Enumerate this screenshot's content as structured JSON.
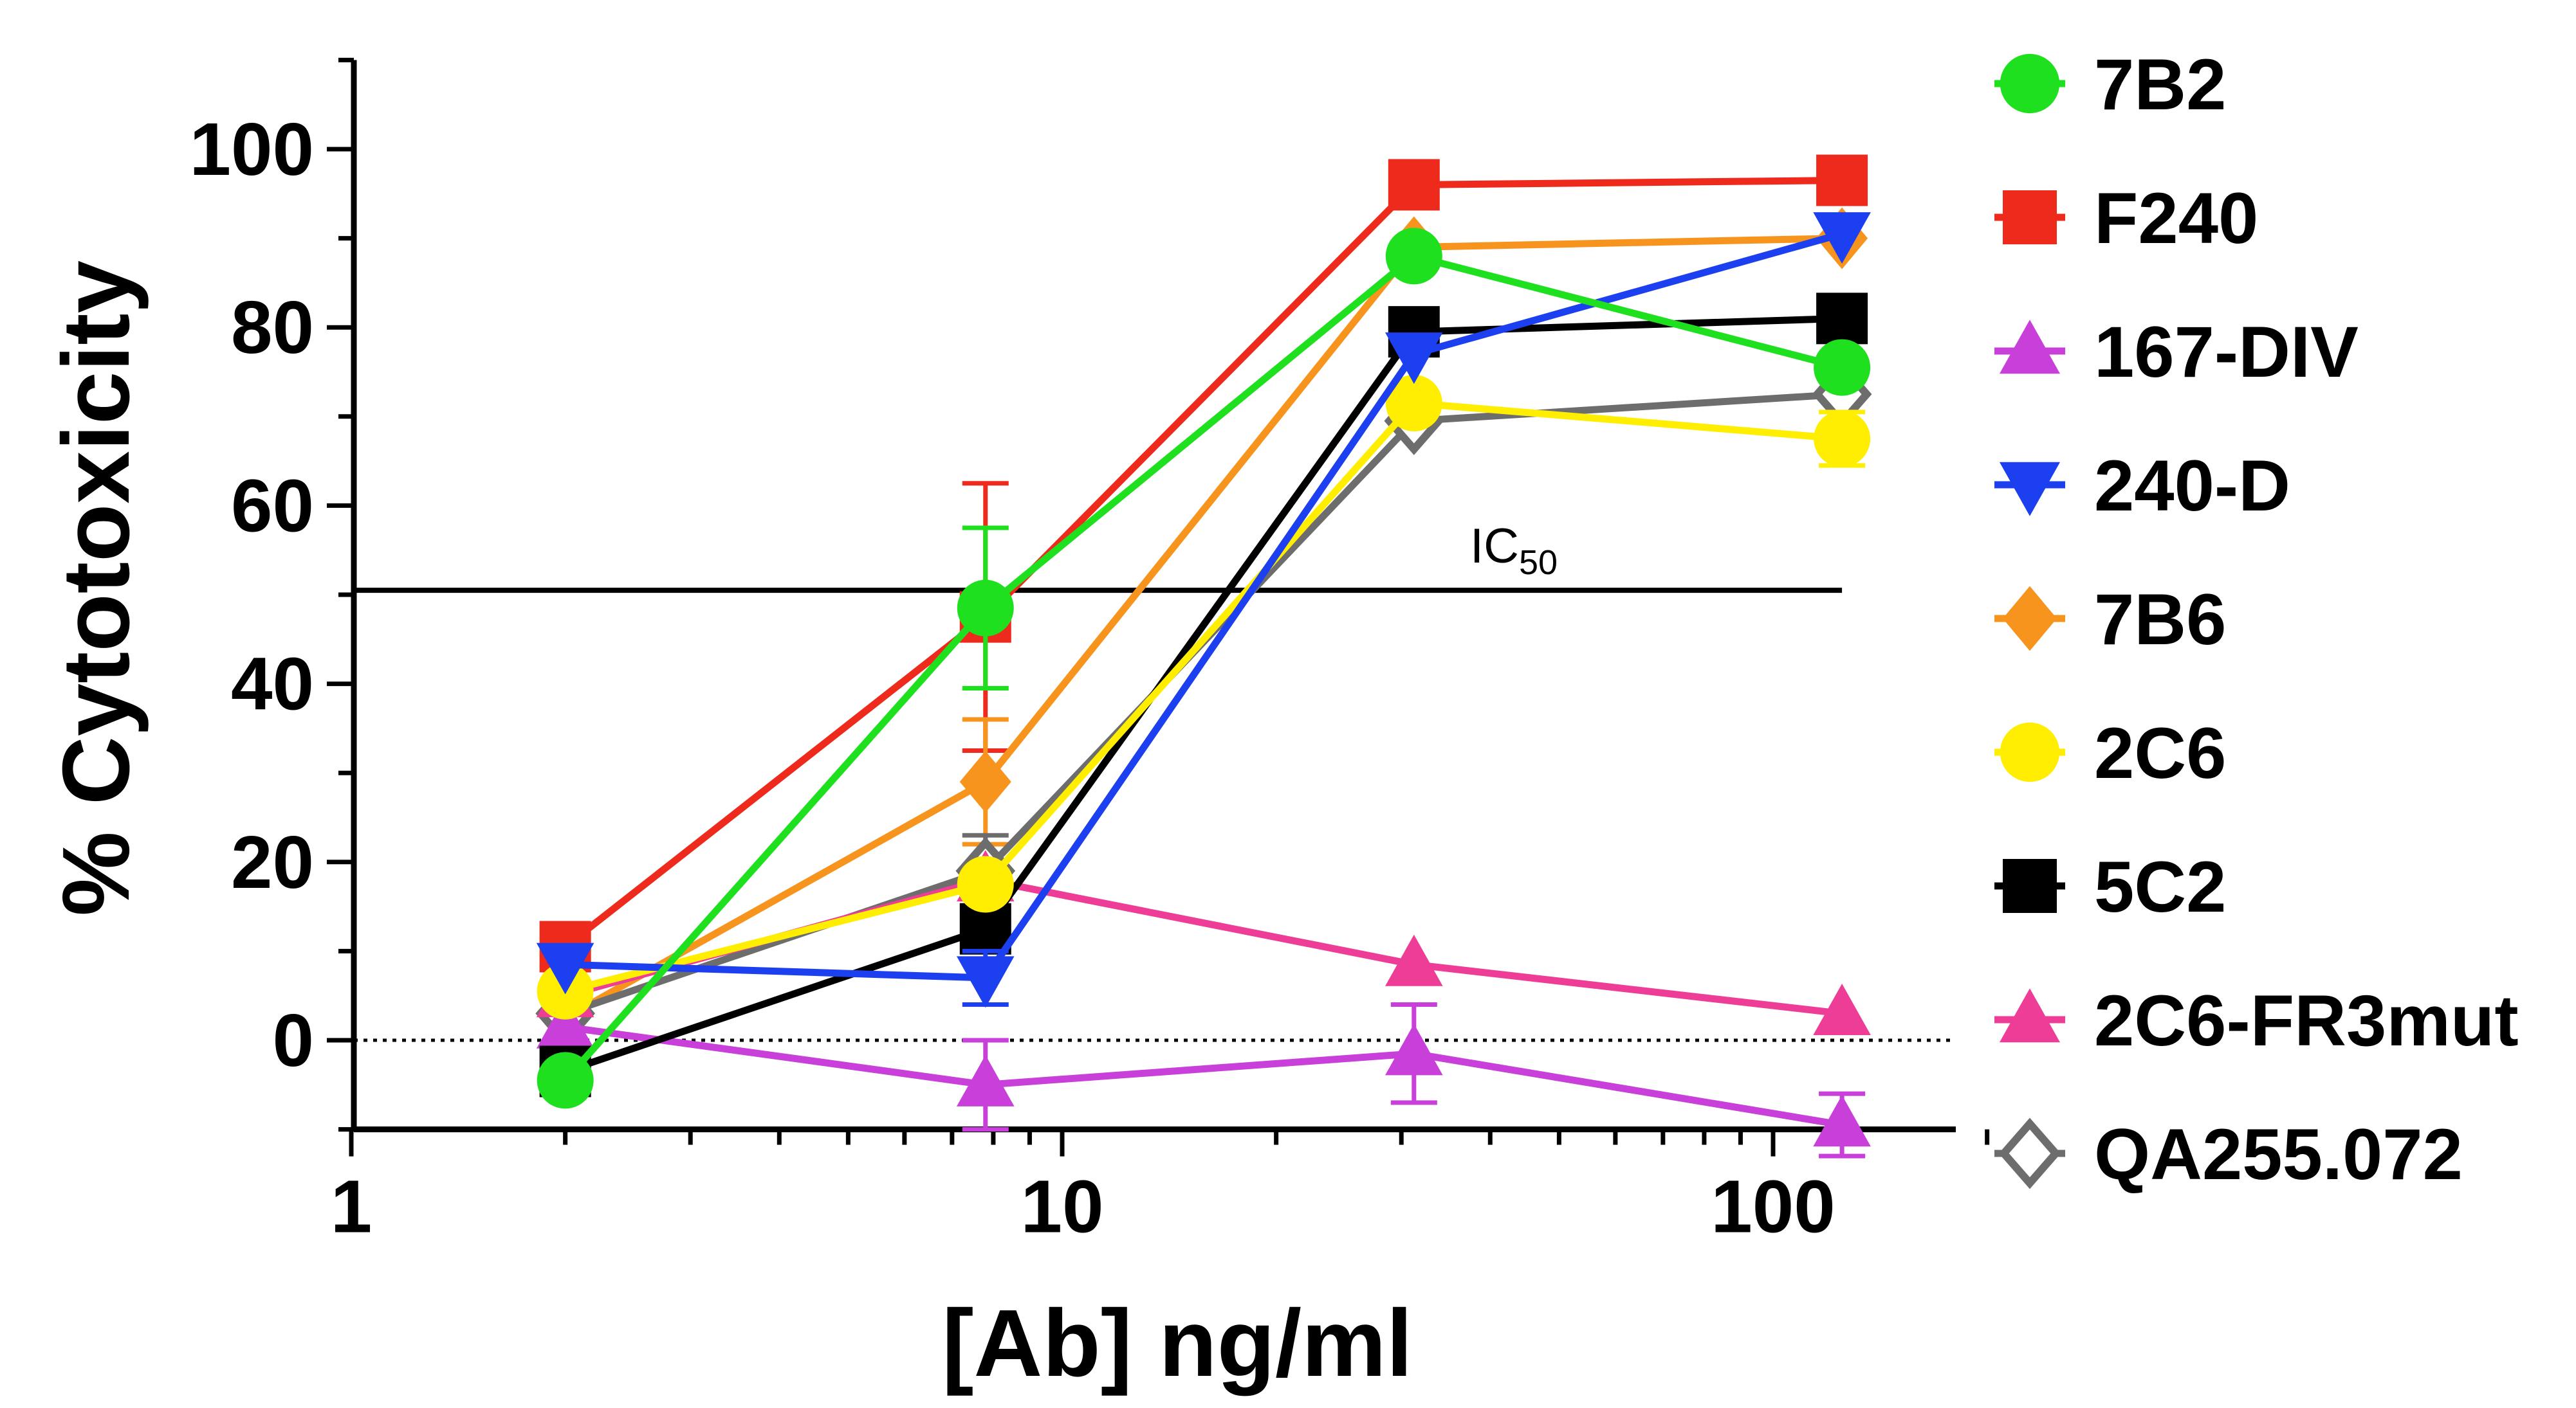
{
  "chart_data": {
    "type": "line",
    "title": "",
    "xlabel": "[Ab] ng/ml",
    "ylabel": "% Cytotoxicity",
    "xscale": "log",
    "xlim": [
      1,
      200
    ],
    "ylim": [
      -10,
      110
    ],
    "x_ticks": [
      1,
      10,
      100
    ],
    "x_tick_labels": [
      "1",
      "10",
      "100"
    ],
    "y_ticks": [
      0,
      20,
      40,
      60,
      80,
      100
    ],
    "y_tick_labels": [
      "0",
      "20",
      "40",
      "60",
      "80",
      "100"
    ],
    "x": [
      2,
      7.8,
      31.25,
      125
    ],
    "reference_line": {
      "y": 50.5,
      "x_range": [
        1,
        125
      ],
      "label": "IC",
      "label_sub": "50"
    },
    "zero_line": {
      "y": 0,
      "style": "dotted"
    },
    "legend_position": "right",
    "series": [
      {
        "name": "F240",
        "color": "#ee2a1c",
        "marker": "square",
        "values": [
          10.5,
          47.5,
          96,
          96.5
        ],
        "errors": [
          0,
          15,
          0,
          0
        ]
      },
      {
        "name": "7B6",
        "color": "#f7941d",
        "marker": "diamond",
        "values": [
          2.5,
          29,
          89,
          90
        ],
        "errors": [
          0,
          7,
          0,
          0
        ]
      },
      {
        "name": "QA255.072",
        "color": "#6d6d6d",
        "marker": "open-diamond",
        "values": [
          3,
          19,
          69.5,
          72.5
        ],
        "errors": [
          0,
          4,
          0,
          0
        ]
      },
      {
        "name": "2C6-FR3mut",
        "color": "#ee3d96",
        "marker": "triangle-up",
        "values": [
          5,
          18,
          8.5,
          3
        ],
        "errors": [
          0,
          0,
          0,
          0
        ]
      },
      {
        "name": "167-DIV",
        "color": "#c83fd9",
        "marker": "triangle-up",
        "values": [
          1.5,
          -5,
          -1.5,
          -9.5
        ],
        "errors": [
          0,
          5,
          5.5,
          3.5
        ]
      },
      {
        "name": "5C2",
        "color": "#000000",
        "marker": "square",
        "values": [
          -3.5,
          12.5,
          79.5,
          81
        ],
        "errors": [
          0,
          0,
          0,
          0
        ]
      },
      {
        "name": "2C6",
        "color": "#ffee00",
        "marker": "circle",
        "values": [
          5.5,
          17.5,
          71.5,
          67.5
        ],
        "errors": [
          0,
          0,
          0,
          3
        ]
      },
      {
        "name": "240-D",
        "color": "#1c3fef",
        "marker": "triangle-down",
        "values": [
          8.5,
          7,
          77,
          90.5
        ],
        "errors": [
          0,
          3,
          0,
          0
        ]
      },
      {
        "name": "7B2",
        "color": "#1fe01f",
        "marker": "circle",
        "values": [
          -4.5,
          48.5,
          88,
          75.5
        ],
        "errors": [
          0,
          9,
          0,
          0
        ]
      }
    ],
    "legend": [
      {
        "name": "7B2",
        "color": "#1fe01f",
        "marker": "circle"
      },
      {
        "name": "F240",
        "color": "#ee2a1c",
        "marker": "square"
      },
      {
        "name": "167-DIV",
        "color": "#c83fd9",
        "marker": "triangle-up"
      },
      {
        "name": "240-D",
        "color": "#1c3fef",
        "marker": "triangle-down"
      },
      {
        "name": "7B6",
        "color": "#f7941d",
        "marker": "diamond"
      },
      {
        "name": "2C6",
        "color": "#ffee00",
        "marker": "circle"
      },
      {
        "name": "5C2",
        "color": "#000000",
        "marker": "square"
      },
      {
        "name": "2C6-FR3mut",
        "color": "#ee3d96",
        "marker": "triangle-up"
      },
      {
        "name": "QA255.072",
        "color": "#6d6d6d",
        "marker": "open-diamond"
      }
    ]
  }
}
